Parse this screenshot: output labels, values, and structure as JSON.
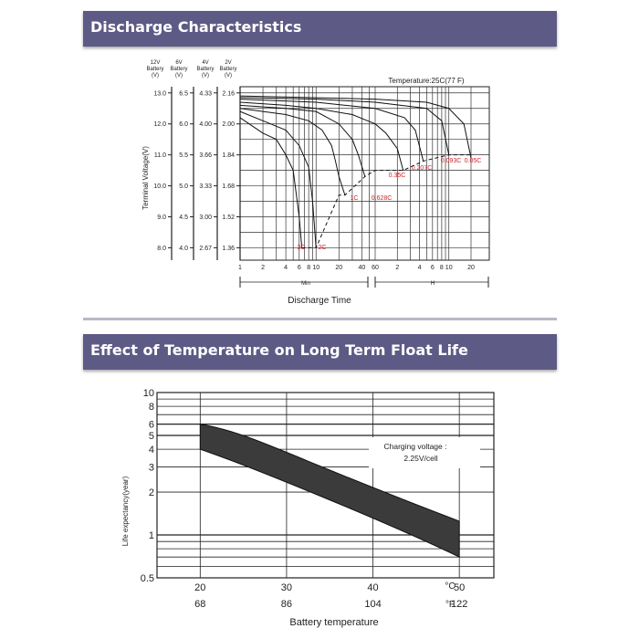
{
  "sections": {
    "discharge_title": "Discharge Characteristics",
    "temperature_title": "Effect of Temperature on Long Term Float Life"
  },
  "colors": {
    "banner": "#5e5a86",
    "curve_label": "#d2232a",
    "band_fill": "#3b3b3b"
  },
  "chart_data": [
    {
      "type": "line",
      "title": "Discharge Characteristics",
      "annotation": "Temperature:25C(77 F)",
      "xlabel": "Discharge Time",
      "ylabel": "Terminal Voltage(V)",
      "x_scale": "log",
      "x_units_segments": [
        {
          "label": "Min",
          "ticks": [
            "1",
            "2",
            "4",
            "6",
            "8",
            "10",
            "20",
            "40",
            "60"
          ]
        },
        {
          "label": "H",
          "ticks": [
            "2",
            "4",
            "6",
            "8",
            "10",
            "20"
          ]
        }
      ],
      "voltage_axes": [
        {
          "header": [
            "12V",
            "Battery",
            "(V)"
          ],
          "ticks": [
            "13.0",
            "12.0",
            "11.0",
            "10.0",
            "9.0",
            "8.0"
          ]
        },
        {
          "header": [
            "6V",
            "Battery",
            "(V)"
          ],
          "ticks": [
            "6.5",
            "6.0",
            "5.5",
            "5.0",
            "4.5",
            "4.0"
          ]
        },
        {
          "header": [
            "4V",
            "Battery",
            "(V)"
          ],
          "ticks": [
            "4.33",
            "4.00",
            "3.66",
            "3.33",
            "3.00",
            "2.67"
          ]
        },
        {
          "header": [
            "2V",
            "Battery",
            "(V)"
          ],
          "ticks": [
            "2.16",
            "2.00",
            "1.84",
            "1.68",
            "1.52",
            "1.36"
          ]
        }
      ],
      "ylim": [
        7.6,
        13.2
      ],
      "series": [
        {
          "name": "3C",
          "x_min": [
            1,
            2,
            3,
            4,
            5,
            6,
            6.5
          ],
          "y": [
            12.2,
            11.7,
            11.5,
            11.0,
            10.5,
            9.0,
            8.0
          ]
        },
        {
          "name": "2C",
          "x_min": [
            1,
            2,
            4,
            6,
            8,
            9,
            10
          ],
          "y": [
            12.4,
            12.1,
            11.8,
            11.3,
            10.6,
            9.5,
            8.0
          ]
        },
        {
          "name": "1C",
          "x_min": [
            1,
            2,
            4,
            8,
            12,
            16,
            18,
            20,
            24
          ],
          "y": [
            12.5,
            12.4,
            12.3,
            12.1,
            11.8,
            11.3,
            10.8,
            10.3,
            9.7
          ]
        },
        {
          "name": "0.628C",
          "x_min": [
            1,
            4,
            10,
            20,
            30,
            36,
            44
          ],
          "y": [
            12.6,
            12.5,
            12.4,
            12.0,
            11.5,
            11.0,
            10.3
          ]
        },
        {
          "name": "0.35C",
          "x_min": [
            1,
            4,
            10,
            30,
            60,
            84,
            120,
            144
          ],
          "y": [
            12.7,
            12.6,
            12.5,
            12.3,
            12.0,
            11.7,
            11.2,
            10.5
          ]
        },
        {
          "name": "0.207C",
          "x_min": [
            1,
            10,
            60,
            150,
            210,
            270
          ],
          "y": [
            12.8,
            12.7,
            12.5,
            12.2,
            11.8,
            10.8
          ]
        },
        {
          "name": "0.093C",
          "x_min": [
            1,
            10,
            60,
            300,
            480,
            600
          ],
          "y": [
            12.85,
            12.8,
            12.7,
            12.5,
            12.1,
            11.0
          ]
        },
        {
          "name": "0.05C",
          "x_min": [
            1,
            60,
            300,
            600,
            960,
            1200
          ],
          "y": [
            12.9,
            12.8,
            12.7,
            12.5,
            12.0,
            10.9
          ]
        }
      ],
      "final_voltage_line": {
        "style": "dashed",
        "x_min": [
          6.5,
          10,
          20,
          24,
          44,
          60,
          144,
          270,
          600,
          1200
        ],
        "y": [
          8.0,
          8.0,
          9.7,
          9.7,
          10.3,
          10.5,
          10.5,
          10.8,
          11.0,
          11.0
        ]
      }
    },
    {
      "type": "area",
      "title": "Effect of Temperature on Long Term Float Life",
      "xlabel": "Battery temperature",
      "ylabel": "Life expectancy(year)",
      "annotation": [
        "Charging voltage :",
        "2.25V/cell"
      ],
      "y_scale": "log",
      "ylim": [
        0.5,
        10
      ],
      "y_ticks": [
        "10",
        "8",
        "6",
        "5",
        "4",
        "3",
        "2",
        "1",
        "0.5"
      ],
      "x_ticks_c": [
        "20",
        "30",
        "40",
        "50"
      ],
      "x_ticks_f": [
        "68",
        "86",
        "104",
        "122"
      ],
      "x_unit_c": "°C",
      "x_unit_f": "°F",
      "xlim_c": [
        15,
        54
      ],
      "band": {
        "x_c": [
          20,
          50
        ],
        "upper": [
          6,
          1.25
        ],
        "lower": [
          4,
          0.7
        ]
      }
    }
  ]
}
